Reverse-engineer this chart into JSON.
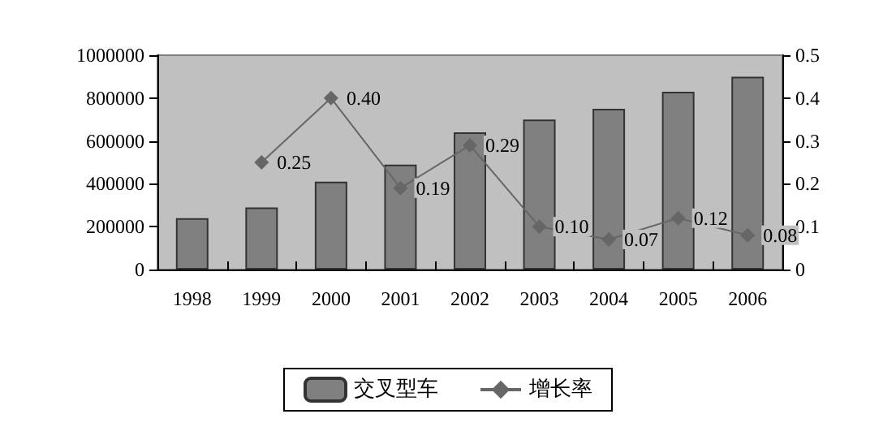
{
  "chart_data": {
    "type": "bar",
    "categories": [
      "1998",
      "1999",
      "2000",
      "2001",
      "2002",
      "2003",
      "2004",
      "2005",
      "2006"
    ],
    "series": [
      {
        "name": "交叉型车",
        "color": "#808080",
        "values": [
          240000,
          290000,
          410000,
          490000,
          640000,
          700000,
          750000,
          830000,
          900000
        ]
      },
      {
        "name": "增长率",
        "type": "line",
        "axis": "y2",
        "color": "#666666",
        "marker": "diamond",
        "values": [
          null,
          0.25,
          0.4,
          0.19,
          0.29,
          0.1,
          0.07,
          0.12,
          0.08
        ],
        "value_labels": [
          null,
          "0.25",
          "0.40",
          "0.19",
          "0.29",
          "0.10",
          "0.07",
          "0.12",
          "0.08"
        ]
      }
    ],
    "ylim": [
      0,
      1000000
    ],
    "yticks": [
      0,
      200000,
      400000,
      600000,
      800000,
      1000000
    ],
    "y2lim": [
      0,
      0.5
    ],
    "y2ticks": [
      0,
      0.1,
      0.2,
      0.3,
      0.4,
      0.5
    ],
    "grid": false,
    "legend": "bottom"
  }
}
